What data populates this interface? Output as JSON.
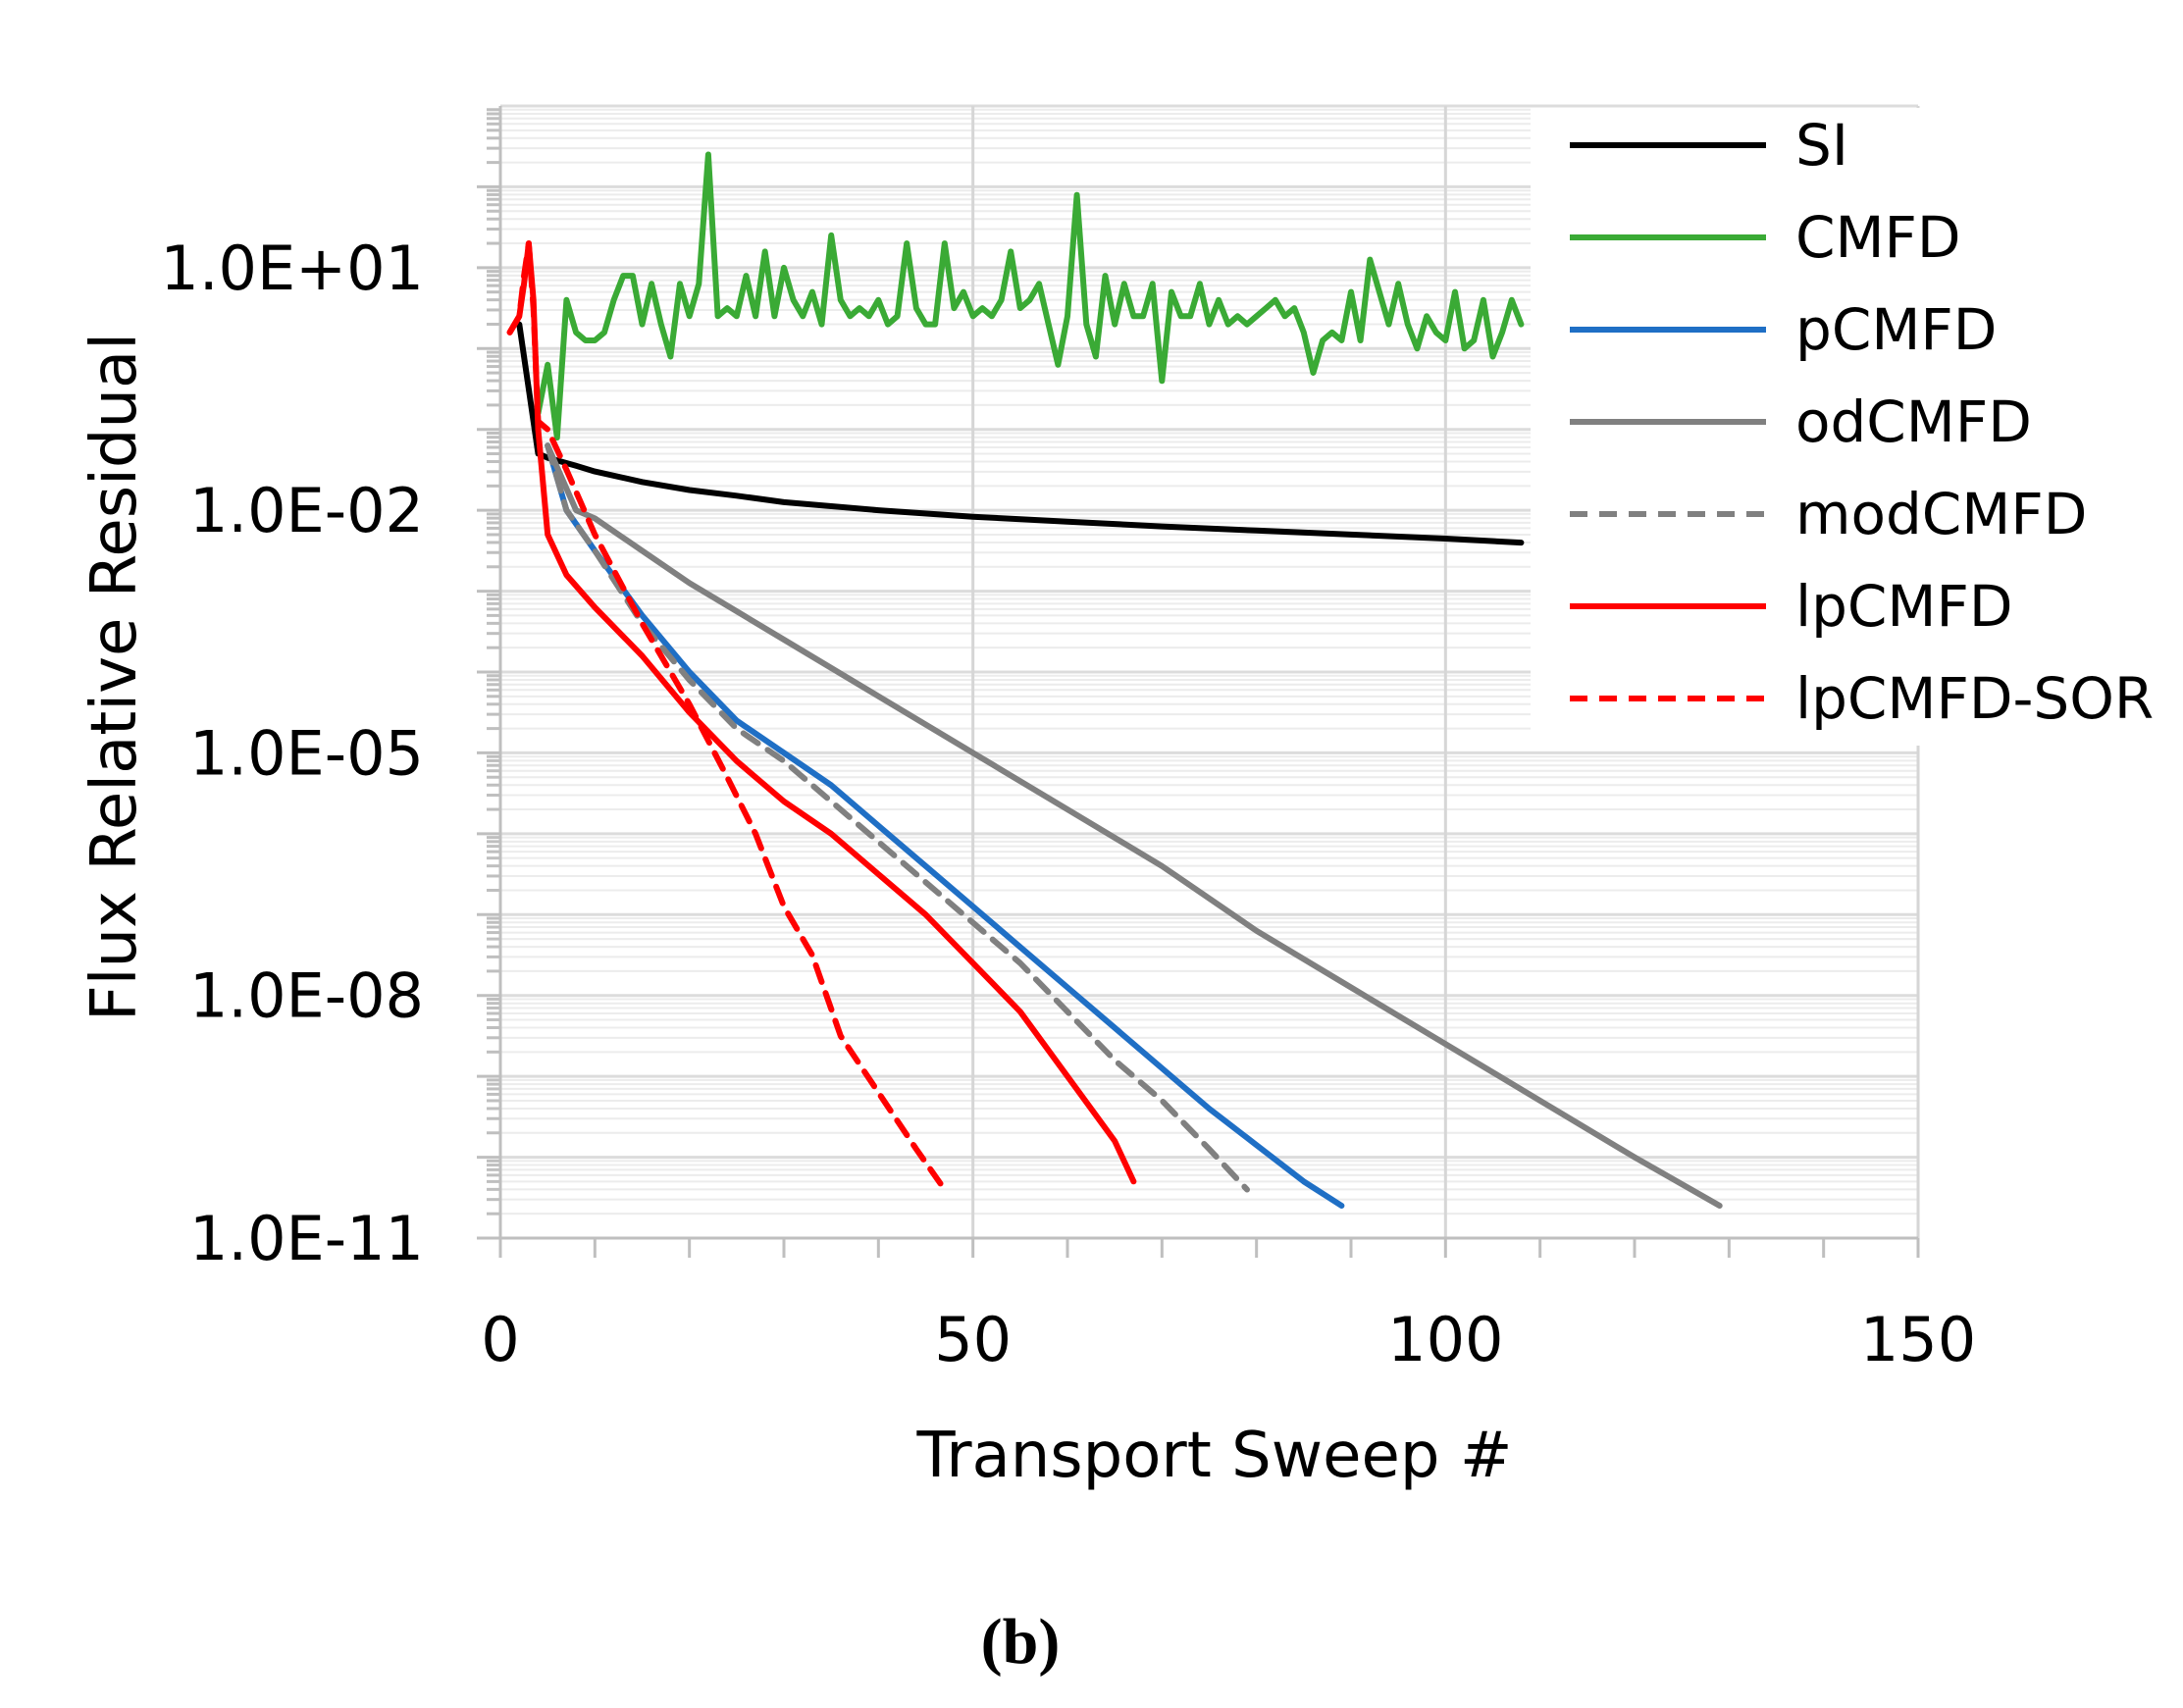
{
  "chart_data": {
    "type": "line",
    "title": "",
    "xlabel": "Transport Sweep #",
    "ylabel": "Flux Relative Residual",
    "xlim": [
      0,
      150
    ],
    "ylim_log10": [
      -11,
      3
    ],
    "x_ticks": [
      0,
      50,
      100,
      150
    ],
    "x_tick_labels": [
      "0",
      "50",
      "100",
      "150"
    ],
    "y_ticks_log10": [
      1,
      -2,
      -5,
      -8,
      -11
    ],
    "y_tick_labels": [
      "1.0E+01",
      "1.0E-02",
      "1.0E-05",
      "1.0E-08",
      "1.0E-11"
    ],
    "y_scale": "log",
    "grid": true,
    "legend_position": "top-right",
    "caption": "(b)",
    "series": [
      {
        "name": "SI",
        "color": "#000000",
        "dash": "solid",
        "points": [
          [
            2,
            0.3
          ],
          [
            3,
            -0.5
          ],
          [
            4,
            -1.3
          ],
          [
            5,
            -1.35
          ],
          [
            8,
            -1.45
          ],
          [
            10,
            -1.52
          ],
          [
            15,
            -1.65
          ],
          [
            20,
            -1.75
          ],
          [
            25,
            -1.82
          ],
          [
            30,
            -1.9
          ],
          [
            40,
            -2.0
          ],
          [
            50,
            -2.08
          ],
          [
            60,
            -2.14
          ],
          [
            70,
            -2.2
          ],
          [
            80,
            -2.25
          ],
          [
            90,
            -2.3
          ],
          [
            100,
            -2.35
          ],
          [
            108,
            -2.4
          ]
        ]
      },
      {
        "name": "CMFD",
        "color": "#3aaa35",
        "dash": "solid",
        "points": [
          [
            4,
            -0.8
          ],
          [
            5,
            -0.2
          ],
          [
            6,
            -1.1
          ],
          [
            7,
            0.6
          ],
          [
            8,
            0.2
          ],
          [
            9,
            0.1
          ],
          [
            10,
            0.1
          ],
          [
            11,
            0.2
          ],
          [
            12,
            0.6
          ],
          [
            13,
            0.9
          ],
          [
            14,
            0.9
          ],
          [
            15,
            0.3
          ],
          [
            16,
            0.8
          ],
          [
            17,
            0.3
          ],
          [
            18,
            -0.1
          ],
          [
            19,
            0.8
          ],
          [
            20,
            0.4
          ],
          [
            21,
            0.8
          ],
          [
            22,
            2.4
          ],
          [
            23,
            0.4
          ],
          [
            24,
            0.5
          ],
          [
            25,
            0.4
          ],
          [
            26,
            0.9
          ],
          [
            27,
            0.4
          ],
          [
            28,
            1.2
          ],
          [
            29,
            0.4
          ],
          [
            30,
            1.0
          ],
          [
            31,
            0.6
          ],
          [
            32,
            0.4
          ],
          [
            33,
            0.7
          ],
          [
            34,
            0.3
          ],
          [
            35,
            1.4
          ],
          [
            36,
            0.6
          ],
          [
            37,
            0.4
          ],
          [
            38,
            0.5
          ],
          [
            39,
            0.4
          ],
          [
            40,
            0.6
          ],
          [
            41,
            0.3
          ],
          [
            42,
            0.4
          ],
          [
            43,
            1.3
          ],
          [
            44,
            0.5
          ],
          [
            45,
            0.3
          ],
          [
            46,
            0.3
          ],
          [
            47,
            1.3
          ],
          [
            48,
            0.5
          ],
          [
            49,
            0.7
          ],
          [
            50,
            0.4
          ],
          [
            51,
            0.5
          ],
          [
            52,
            0.4
          ],
          [
            53,
            0.6
          ],
          [
            54,
            1.2
          ],
          [
            55,
            0.5
          ],
          [
            56,
            0.6
          ],
          [
            57,
            0.8
          ],
          [
            58,
            0.3
          ],
          [
            59,
            -0.2
          ],
          [
            60,
            0.4
          ],
          [
            61,
            1.9
          ],
          [
            62,
            0.3
          ],
          [
            63,
            -0.1
          ],
          [
            64,
            0.9
          ],
          [
            65,
            0.3
          ],
          [
            66,
            0.8
          ],
          [
            67,
            0.4
          ],
          [
            68,
            0.4
          ],
          [
            69,
            0.8
          ],
          [
            70,
            -0.4
          ],
          [
            71,
            0.7
          ],
          [
            72,
            0.4
          ],
          [
            73,
            0.4
          ],
          [
            74,
            0.8
          ],
          [
            75,
            0.3
          ],
          [
            76,
            0.6
          ],
          [
            77,
            0.3
          ],
          [
            78,
            0.4
          ],
          [
            79,
            0.3
          ],
          [
            80,
            0.4
          ],
          [
            81,
            0.5
          ],
          [
            82,
            0.6
          ],
          [
            83,
            0.4
          ],
          [
            84,
            0.5
          ],
          [
            85,
            0.2
          ],
          [
            86,
            -0.3
          ],
          [
            87,
            0.1
          ],
          [
            88,
            0.2
          ],
          [
            89,
            0.1
          ],
          [
            90,
            0.7
          ],
          [
            91,
            0.1
          ],
          [
            92,
            1.1
          ],
          [
            93,
            0.7
          ],
          [
            94,
            0.3
          ],
          [
            95,
            0.8
          ],
          [
            96,
            0.3
          ],
          [
            97,
            0.0
          ],
          [
            98,
            0.4
          ],
          [
            99,
            0.2
          ],
          [
            100,
            0.1
          ],
          [
            101,
            0.7
          ],
          [
            102,
            0.0
          ],
          [
            103,
            0.1
          ],
          [
            104,
            0.6
          ],
          [
            105,
            -0.1
          ],
          [
            106,
            0.2
          ],
          [
            107,
            0.6
          ],
          [
            108,
            0.3
          ]
        ]
      },
      {
        "name": "pCMFD",
        "color": "#1f6fc5",
        "dash": "solid",
        "points": [
          [
            5,
            -1.2
          ],
          [
            7,
            -2.0
          ],
          [
            10,
            -2.5
          ],
          [
            15,
            -3.3
          ],
          [
            20,
            -4.0
          ],
          [
            25,
            -4.6
          ],
          [
            30,
            -5.0
          ],
          [
            35,
            -5.4
          ],
          [
            40,
            -5.9
          ],
          [
            45,
            -6.4
          ],
          [
            50,
            -6.9
          ],
          [
            55,
            -7.4
          ],
          [
            60,
            -7.9
          ],
          [
            65,
            -8.4
          ],
          [
            70,
            -8.9
          ],
          [
            75,
            -9.4
          ],
          [
            80,
            -9.85
          ],
          [
            85,
            -10.3
          ],
          [
            89,
            -10.6
          ]
        ]
      },
      {
        "name": "odCMFD",
        "color": "#808080",
        "dash": "solid",
        "points": [
          [
            5,
            -1.2
          ],
          [
            8,
            -2.0
          ],
          [
            10,
            -2.1
          ],
          [
            15,
            -2.5
          ],
          [
            20,
            -2.9
          ],
          [
            30,
            -3.6
          ],
          [
            40,
            -4.3
          ],
          [
            50,
            -5.0
          ],
          [
            60,
            -5.7
          ],
          [
            70,
            -6.4
          ],
          [
            80,
            -7.2
          ],
          [
            90,
            -7.9
          ],
          [
            100,
            -8.6
          ],
          [
            110,
            -9.3
          ],
          [
            120,
            -10.0
          ],
          [
            129,
            -10.6
          ]
        ]
      },
      {
        "name": "modCMFD",
        "color": "#808080",
        "dash": "dashed",
        "points": [
          [
            5,
            -1.2
          ],
          [
            7,
            -2.0
          ],
          [
            10,
            -2.5
          ],
          [
            15,
            -3.4
          ],
          [
            20,
            -4.1
          ],
          [
            25,
            -4.7
          ],
          [
            30,
            -5.1
          ],
          [
            35,
            -5.6
          ],
          [
            40,
            -6.1
          ],
          [
            45,
            -6.6
          ],
          [
            50,
            -7.1
          ],
          [
            55,
            -7.6
          ],
          [
            60,
            -8.2
          ],
          [
            65,
            -8.8
          ],
          [
            70,
            -9.3
          ],
          [
            75,
            -9.9
          ],
          [
            79,
            -10.4
          ]
        ]
      },
      {
        "name": "lpCMFD",
        "color": "#ff0000",
        "dash": "solid",
        "points": [
          [
            1,
            0.2
          ],
          [
            2,
            0.4
          ],
          [
            2.5,
            0.8
          ],
          [
            3,
            1.3
          ],
          [
            3.5,
            0.6
          ],
          [
            4,
            -1.0
          ],
          [
            5,
            -2.3
          ],
          [
            7,
            -2.8
          ],
          [
            10,
            -3.2
          ],
          [
            15,
            -3.8
          ],
          [
            20,
            -4.5
          ],
          [
            25,
            -5.1
          ],
          [
            30,
            -5.6
          ],
          [
            35,
            -6.0
          ],
          [
            40,
            -6.5
          ],
          [
            45,
            -7.0
          ],
          [
            50,
            -7.6
          ],
          [
            55,
            -8.2
          ],
          [
            60,
            -9.0
          ],
          [
            65,
            -9.8
          ],
          [
            67,
            -10.3
          ]
        ]
      },
      {
        "name": "lpCMFD-SOR",
        "color": "#ff0000",
        "dash": "dashed",
        "points": [
          [
            1,
            0.2
          ],
          [
            2,
            0.4
          ],
          [
            2.5,
            0.9
          ],
          [
            3,
            1.3
          ],
          [
            3.5,
            0.5
          ],
          [
            4,
            -0.9
          ],
          [
            5,
            -1.0
          ],
          [
            7,
            -1.5
          ],
          [
            10,
            -2.3
          ],
          [
            15,
            -3.4
          ],
          [
            20,
            -4.4
          ],
          [
            24,
            -5.3
          ],
          [
            27,
            -6.0
          ],
          [
            30,
            -6.9
          ],
          [
            33,
            -7.5
          ],
          [
            36,
            -8.5
          ],
          [
            40,
            -9.2
          ],
          [
            44,
            -9.9
          ],
          [
            47,
            -10.4
          ]
        ]
      }
    ]
  }
}
